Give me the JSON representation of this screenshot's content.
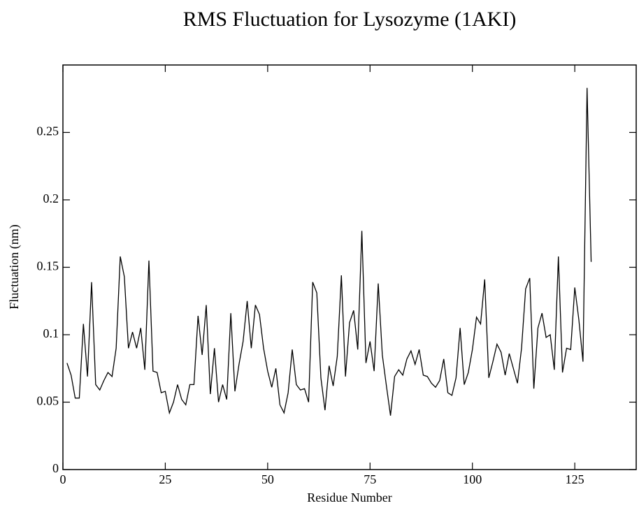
{
  "chart_data": {
    "type": "line",
    "title": "RMS Fluctuation for Lysozyme (1AKI)",
    "x_label": "Residue Number",
    "y_label": "Fluctuation (nm)",
    "xlim": [
      0,
      140
    ],
    "ylim": [
      0,
      0.3
    ],
    "xticks": [
      0,
      25,
      50,
      75,
      100,
      125
    ],
    "yticks": [
      0,
      0.05,
      0.1,
      0.15,
      0.2,
      0.25
    ],
    "grid": false,
    "x": [
      1,
      2,
      3,
      4,
      5,
      6,
      7,
      8,
      9,
      10,
      11,
      12,
      13,
      14,
      15,
      16,
      17,
      18,
      19,
      20,
      21,
      22,
      23,
      24,
      25,
      26,
      27,
      28,
      29,
      30,
      31,
      32,
      33,
      34,
      35,
      36,
      37,
      38,
      39,
      40,
      41,
      42,
      43,
      44,
      45,
      46,
      47,
      48,
      49,
      50,
      51,
      52,
      53,
      54,
      55,
      56,
      57,
      58,
      59,
      60,
      61,
      62,
      63,
      64,
      65,
      66,
      67,
      68,
      69,
      70,
      71,
      72,
      73,
      74,
      75,
      76,
      77,
      78,
      79,
      80,
      81,
      82,
      83,
      84,
      85,
      86,
      87,
      88,
      89,
      90,
      91,
      92,
      93,
      94,
      95,
      96,
      97,
      98,
      99,
      100,
      101,
      102,
      103,
      104,
      105,
      106,
      107,
      108,
      109,
      110,
      111,
      112,
      113,
      114,
      115,
      116,
      117,
      118,
      119,
      120,
      121,
      122,
      123,
      124,
      125,
      126,
      127,
      128,
      129
    ],
    "series": [
      {
        "color": "#000000",
        "values": [
          0.079,
          0.07,
          0.053,
          0.053,
          0.108,
          0.069,
          0.139,
          0.063,
          0.059,
          0.066,
          0.072,
          0.069,
          0.09,
          0.158,
          0.143,
          0.09,
          0.102,
          0.09,
          0.105,
          0.074,
          0.155,
          0.073,
          0.072,
          0.057,
          0.058,
          0.042,
          0.05,
          0.063,
          0.052,
          0.048,
          0.063,
          0.063,
          0.114,
          0.085,
          0.122,
          0.056,
          0.09,
          0.05,
          0.063,
          0.052,
          0.116,
          0.058,
          0.078,
          0.095,
          0.125,
          0.09,
          0.122,
          0.115,
          0.09,
          0.073,
          0.061,
          0.075,
          0.048,
          0.042,
          0.057,
          0.089,
          0.063,
          0.059,
          0.06,
          0.05,
          0.139,
          0.131,
          0.068,
          0.044,
          0.077,
          0.062,
          0.084,
          0.144,
          0.069,
          0.109,
          0.118,
          0.089,
          0.177,
          0.079,
          0.095,
          0.073,
          0.138,
          0.085,
          0.062,
          0.04,
          0.069,
          0.074,
          0.07,
          0.082,
          0.088,
          0.078,
          0.089,
          0.07,
          0.069,
          0.064,
          0.061,
          0.066,
          0.082,
          0.057,
          0.055,
          0.068,
          0.105,
          0.063,
          0.072,
          0.089,
          0.113,
          0.108,
          0.141,
          0.068,
          0.08,
          0.093,
          0.087,
          0.07,
          0.086,
          0.075,
          0.064,
          0.09,
          0.134,
          0.142,
          0.06,
          0.105,
          0.116,
          0.098,
          0.1,
          0.074,
          0.158,
          0.072,
          0.09,
          0.089,
          0.135,
          0.111,
          0.08,
          0.283,
          0.154
        ]
      }
    ]
  }
}
